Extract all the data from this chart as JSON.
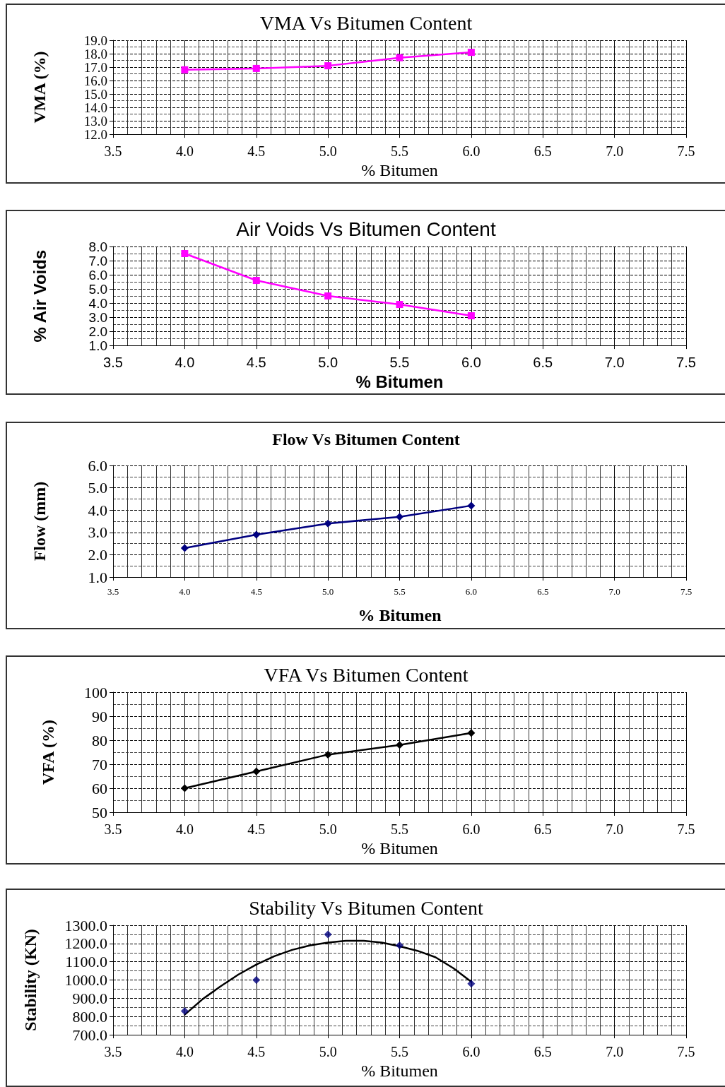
{
  "chart_data": [
    {
      "type": "line",
      "title": "VMA Vs Bitumen Content",
      "xlabel": "% Bitumen",
      "ylabel": "VMA (%)",
      "x": [
        4.0,
        4.5,
        5.0,
        5.5,
        6.0
      ],
      "marker": "square",
      "grid": true,
      "series": [
        {
          "color": "#ff00ff",
          "values": [
            16.8,
            16.9,
            17.1,
            17.7,
            18.1
          ]
        }
      ],
      "xlim": [
        3.5,
        7.5
      ],
      "xticks": [
        {
          "value": 3.5,
          "label": "3.5"
        },
        {
          "value": 4,
          "label": "4.0"
        },
        {
          "value": 4.5,
          "label": "4.5"
        },
        {
          "value": 5,
          "label": "5.0"
        },
        {
          "value": 5.5,
          "label": "5.5"
        },
        {
          "value": 6,
          "label": "6.0"
        },
        {
          "value": 6.5,
          "label": "6.5"
        },
        {
          "value": 7,
          "label": "7.0"
        },
        {
          "value": 7.5,
          "label": "7.5"
        }
      ],
      "ylim": [
        12,
        19
      ],
      "yticks": [
        {
          "value": 12,
          "label": "12.0"
        },
        {
          "value": 13,
          "label": "13.0"
        },
        {
          "value": 14,
          "label": "14.0"
        },
        {
          "value": 15,
          "label": "15.0"
        },
        {
          "value": 16,
          "label": "16.0"
        },
        {
          "value": 17,
          "label": "17.0"
        },
        {
          "value": 18,
          "label": "18.0"
        },
        {
          "value": 19,
          "label": "19.0"
        }
      ]
    },
    {
      "type": "line",
      "title": "Air Voids Vs Bitumen Content",
      "xlabel": "% Bitumen",
      "ylabel": "% Air Voids",
      "x": [
        4.0,
        4.5,
        5.0,
        5.5,
        6.0
      ],
      "marker": "square",
      "grid": true,
      "series": [
        {
          "color": "#ff00ff",
          "values": [
            7.5,
            5.6,
            4.5,
            3.9,
            3.1
          ]
        }
      ],
      "xlim": [
        3.5,
        7.5
      ],
      "xticks": [
        {
          "value": 3.5,
          "label": "3.5"
        },
        {
          "value": 4,
          "label": "4.0"
        },
        {
          "value": 4.5,
          "label": "4.5"
        },
        {
          "value": 5,
          "label": "5.0"
        },
        {
          "value": 5.5,
          "label": "5.5"
        },
        {
          "value": 6,
          "label": "6.0"
        },
        {
          "value": 6.5,
          "label": "6.5"
        },
        {
          "value": 7,
          "label": "7.0"
        },
        {
          "value": 7.5,
          "label": "7.5"
        }
      ],
      "ylim": [
        1,
        8
      ],
      "yticks": [
        {
          "value": 1,
          "label": "1.0"
        },
        {
          "value": 2,
          "label": "2.0"
        },
        {
          "value": 3,
          "label": "3.0"
        },
        {
          "value": 4,
          "label": "4.0"
        },
        {
          "value": 5,
          "label": "5.0"
        },
        {
          "value": 6,
          "label": "6.0"
        },
        {
          "value": 7,
          "label": "7.0"
        },
        {
          "value": 8,
          "label": "8.0"
        }
      ]
    },
    {
      "type": "line",
      "title": "Flow Vs Bitumen Content",
      "xlabel": "% Bitumen",
      "ylabel": "Flow (mm)",
      "x": [
        4.0,
        4.5,
        5.0,
        5.5,
        6.0
      ],
      "marker": "diamond",
      "grid": true,
      "series": [
        {
          "color": "#000080",
          "values": [
            2.3,
            2.9,
            3.4,
            3.7,
            4.2
          ]
        }
      ],
      "xlim": [
        3.5,
        7.5
      ],
      "xticks": [
        {
          "value": 3.5,
          "label": "3.5"
        },
        {
          "value": 4,
          "label": "4.0"
        },
        {
          "value": 4.5,
          "label": "4.5"
        },
        {
          "value": 5,
          "label": "5.0"
        },
        {
          "value": 5.5,
          "label": "5.5"
        },
        {
          "value": 6,
          "label": "6.0"
        },
        {
          "value": 6.5,
          "label": "6.5"
        },
        {
          "value": 7,
          "label": "7.0"
        },
        {
          "value": 7.5,
          "label": "7.5"
        }
      ],
      "ylim": [
        1,
        6
      ],
      "yticks": [
        {
          "value": 1,
          "label": "1.0"
        },
        {
          "value": 2,
          "label": "2.0"
        },
        {
          "value": 3,
          "label": "3.0"
        },
        {
          "value": 4,
          "label": "4.0"
        },
        {
          "value": 5,
          "label": "5.0"
        },
        {
          "value": 6,
          "label": "6.0"
        }
      ]
    },
    {
      "type": "line",
      "title": "VFA Vs Bitumen Content",
      "xlabel": "% Bitumen",
      "ylabel": "VFA (%)",
      "x": [
        4.0,
        4.5,
        5.0,
        5.5,
        6.0
      ],
      "marker": "diamond",
      "grid": true,
      "series": [
        {
          "color": "#000000",
          "values": [
            60,
            67,
            74,
            78,
            83
          ]
        }
      ],
      "xlim": [
        3.5,
        7.5
      ],
      "xticks": [
        {
          "value": 3.5,
          "label": "3.5"
        },
        {
          "value": 4,
          "label": "4.0"
        },
        {
          "value": 4.5,
          "label": "4.5"
        },
        {
          "value": 5,
          "label": "5.0"
        },
        {
          "value": 5.5,
          "label": "5.5"
        },
        {
          "value": 6,
          "label": "6.0"
        },
        {
          "value": 6.5,
          "label": "6.5"
        },
        {
          "value": 7,
          "label": "7.0"
        },
        {
          "value": 7.5,
          "label": "7.5"
        }
      ],
      "ylim": [
        50,
        100
      ],
      "yticks": [
        50,
        60,
        70,
        80,
        90,
        100
      ]
    },
    {
      "type": "scatter",
      "title": "Stability Vs Bitumen Content",
      "xlabel": "% Bitumen",
      "ylabel": "Stability (KN)",
      "x": [
        4.0,
        4.5,
        5.0,
        5.5,
        6.0
      ],
      "marker": "diamond",
      "grid": true,
      "series": [
        {
          "color": "#000080",
          "values": [
            830,
            1000,
            1250,
            1190,
            980
          ]
        },
        {
          "type": "line",
          "marker": "none",
          "color": "#000000",
          "x": [
            4.0,
            4.125,
            4.25,
            4.375,
            4.5,
            4.625,
            4.75,
            4.875,
            5.0,
            5.125,
            5.25,
            5.375,
            5.5,
            5.625,
            5.75,
            5.875,
            6.0
          ],
          "values": [
            810,
            895,
            965,
            1030,
            1085,
            1130,
            1165,
            1190,
            1205,
            1215,
            1215,
            1205,
            1185,
            1160,
            1125,
            1065,
            990
          ]
        }
      ],
      "xlim": [
        3.5,
        7.5
      ],
      "xticks": [
        {
          "value": 3.5,
          "label": "3.5"
        },
        {
          "value": 4,
          "label": "4.0"
        },
        {
          "value": 4.5,
          "label": "4.5"
        },
        {
          "value": 5,
          "label": "5.0"
        },
        {
          "value": 5.5,
          "label": "5.5"
        },
        {
          "value": 6,
          "label": "6.0"
        },
        {
          "value": 6.5,
          "label": "6.5"
        },
        {
          "value": 7,
          "label": "7.0"
        },
        {
          "value": 7.5,
          "label": "7.5"
        }
      ],
      "ylim": [
        700,
        1300
      ],
      "yticks": [
        {
          "value": 700,
          "label": "700.0"
        },
        {
          "value": 800,
          "label": "800.0"
        },
        {
          "value": 900,
          "label": "900.0"
        },
        {
          "value": 1000,
          "label": "1000.0"
        },
        {
          "value": 1100,
          "label": "1100.0"
        },
        {
          "value": 1200,
          "label": "1200.0"
        },
        {
          "value": 1300,
          "label": "1300.0"
        }
      ]
    }
  ]
}
